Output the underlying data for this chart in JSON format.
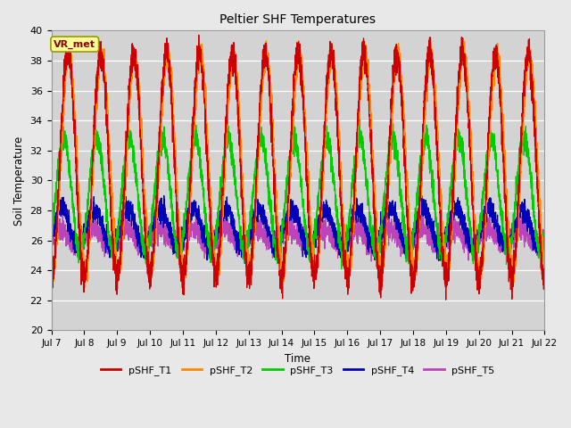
{
  "title": "Peltier SHF Temperatures",
  "ylabel": "Soil Temperature",
  "xlabel": "Time",
  "annotation_text": "VR_met",
  "background_color": "#e8e8e8",
  "plot_bg_color": "#d3d3d3",
  "ylim": [
    20,
    40
  ],
  "x_start_day": 7,
  "x_end_day": 22,
  "x_ticks": [
    7,
    8,
    9,
    10,
    11,
    12,
    13,
    14,
    15,
    16,
    17,
    18,
    19,
    20,
    21,
    22
  ],
  "x_tick_labels": [
    "Jul 7",
    "Jul 8",
    "Jul 9",
    "Jul 10",
    "Jul 11",
    "Jul 12",
    "Jul 13",
    "Jul 14",
    "Jul 15",
    "Jul 16",
    "Jul 17",
    "Jul 18",
    "Jul 19",
    "Jul 20",
    "Jul 21",
    "Jul 22"
  ],
  "series": [
    {
      "label": "pSHF_T1",
      "color": "#cc0000",
      "base": 31.0,
      "amplitude": 7.5,
      "phase": 0.0,
      "noise_amp": 0.5
    },
    {
      "label": "pSHF_T2",
      "color": "#ff8800",
      "base": 31.2,
      "amplitude": 7.2,
      "phase": -0.04,
      "noise_amp": 0.4
    },
    {
      "label": "pSHF_T3",
      "color": "#00cc00",
      "base": 29.0,
      "amplitude": 3.8,
      "phase": 0.12,
      "noise_amp": 0.4
    },
    {
      "label": "pSHF_T4",
      "color": "#0000bb",
      "base": 26.8,
      "amplitude": 1.3,
      "phase": 0.18,
      "noise_amp": 0.35
    },
    {
      "label": "pSHF_T5",
      "color": "#bb44bb",
      "base": 26.2,
      "amplitude": 0.6,
      "phase": 0.22,
      "noise_amp": 0.35
    }
  ],
  "legend_colors": [
    "#cc0000",
    "#ff8800",
    "#00cc00",
    "#0000bb",
    "#bb44bb"
  ],
  "legend_labels": [
    "pSHF_T1",
    "pSHF_T2",
    "pSHF_T3",
    "pSHF_T4",
    "pSHF_T5"
  ]
}
